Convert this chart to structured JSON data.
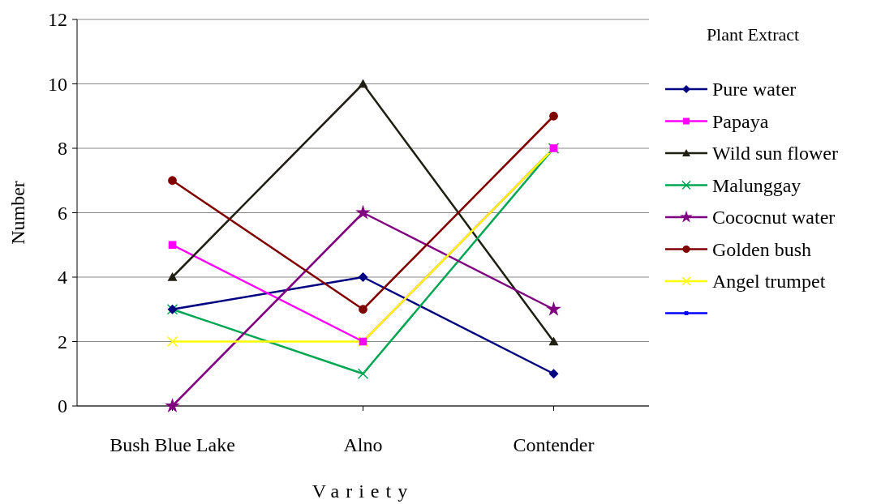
{
  "chart_data": {
    "type": "line",
    "xlabel": "Variety",
    "ylabel": "Number",
    "legend_title": "Plant Extract",
    "categories": [
      "Bush Blue Lake",
      "Alno",
      "Contender"
    ],
    "ylim": [
      0,
      12
    ],
    "yticks": [
      0,
      2,
      4,
      6,
      8,
      10,
      12
    ],
    "grid": "y",
    "legend": "right",
    "series": [
      {
        "name": "Pure water",
        "color": "#000080",
        "marker": "diamond",
        "values": [
          3,
          4,
          1
        ]
      },
      {
        "name": "Papaya",
        "color": "#ff00ff",
        "marker": "square",
        "values": [
          5,
          2,
          8
        ]
      },
      {
        "name": "Wild sun flower",
        "color": "#1f1f14",
        "marker": "triangle",
        "values": [
          4,
          10,
          2
        ]
      },
      {
        "name": "Malunggay",
        "color": "#00a651",
        "marker": "cross",
        "values": [
          3,
          1,
          8
        ]
      },
      {
        "name": "Cococnut water",
        "color": "#800080",
        "marker": "star",
        "values": [
          0,
          6,
          3
        ]
      },
      {
        "name": "Golden bush",
        "color": "#800000",
        "marker": "circle",
        "values": [
          7,
          3,
          9
        ]
      },
      {
        "name": "Angel trumpet",
        "color": "#ffff00",
        "marker": "cross",
        "values": [
          2,
          2,
          8
        ]
      },
      {
        "color": "#0000ff",
        "marker": "square",
        "values": [
          null,
          null,
          null
        ]
      }
    ]
  }
}
